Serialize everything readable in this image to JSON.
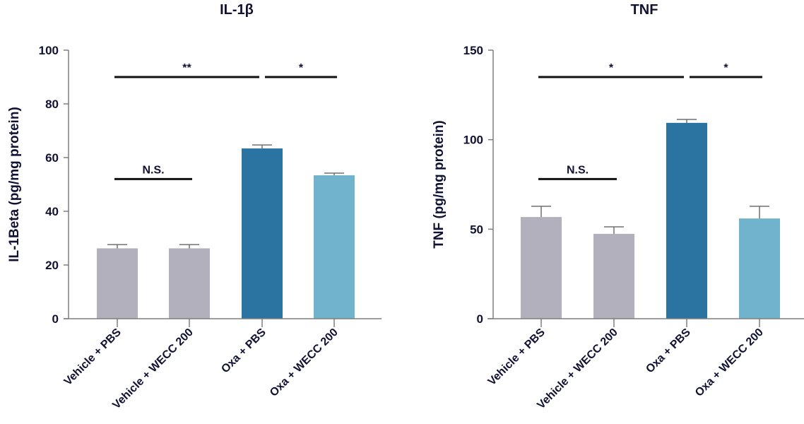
{
  "chart_data": [
    {
      "type": "bar",
      "title": "IL-1β",
      "xlabel": "",
      "ylabel": "IL-1Beta (pg/mg protein)",
      "ylim": [
        0,
        100
      ],
      "yticks": [
        0,
        20,
        40,
        60,
        80,
        100
      ],
      "categories": [
        "Vehicle + PBS",
        "Vehicle + WECC 200",
        "Oxa + PBS",
        "Oxa + WECC 200"
      ],
      "values": [
        26.2,
        26.2,
        63.4,
        53.4
      ],
      "error_upper": [
        1.4,
        1.4,
        1.3,
        0.8
      ],
      "colors": [
        "#b1b0bc",
        "#b1b0bc",
        "#2b74a1",
        "#71b3cd"
      ],
      "grid": false,
      "annotations": [
        {
          "from": 0,
          "to": 1,
          "level": 52,
          "label": "N.S."
        },
        {
          "from": 0,
          "to": 2,
          "level": 90,
          "label": "**"
        },
        {
          "from": 2,
          "to": 3,
          "level": 90,
          "label": "*"
        }
      ]
    },
    {
      "type": "bar",
      "title": "TNF",
      "xlabel": "",
      "ylabel": "TNF (pg/mg protein)",
      "ylim": [
        0,
        150
      ],
      "yticks": [
        0,
        50,
        100,
        150
      ],
      "categories": [
        "Vehicle + PBS",
        "Vehicle + WECC 200",
        "Oxa + PBS",
        "Oxa + WECC 200"
      ],
      "values": [
        56.8,
        47.4,
        109.4,
        56.0
      ],
      "error_upper": [
        6.0,
        3.9,
        1.9,
        6.8
      ],
      "colors": [
        "#b1b0bc",
        "#b1b0bc",
        "#2b74a1",
        "#71b3cd"
      ],
      "grid": false,
      "annotations": [
        {
          "from": 0,
          "to": 1,
          "level": 78,
          "label": "N.S."
        },
        {
          "from": 0,
          "to": 2,
          "level": 135,
          "label": "*"
        },
        {
          "from": 2,
          "to": 3,
          "level": 135,
          "label": "*"
        }
      ]
    }
  ]
}
